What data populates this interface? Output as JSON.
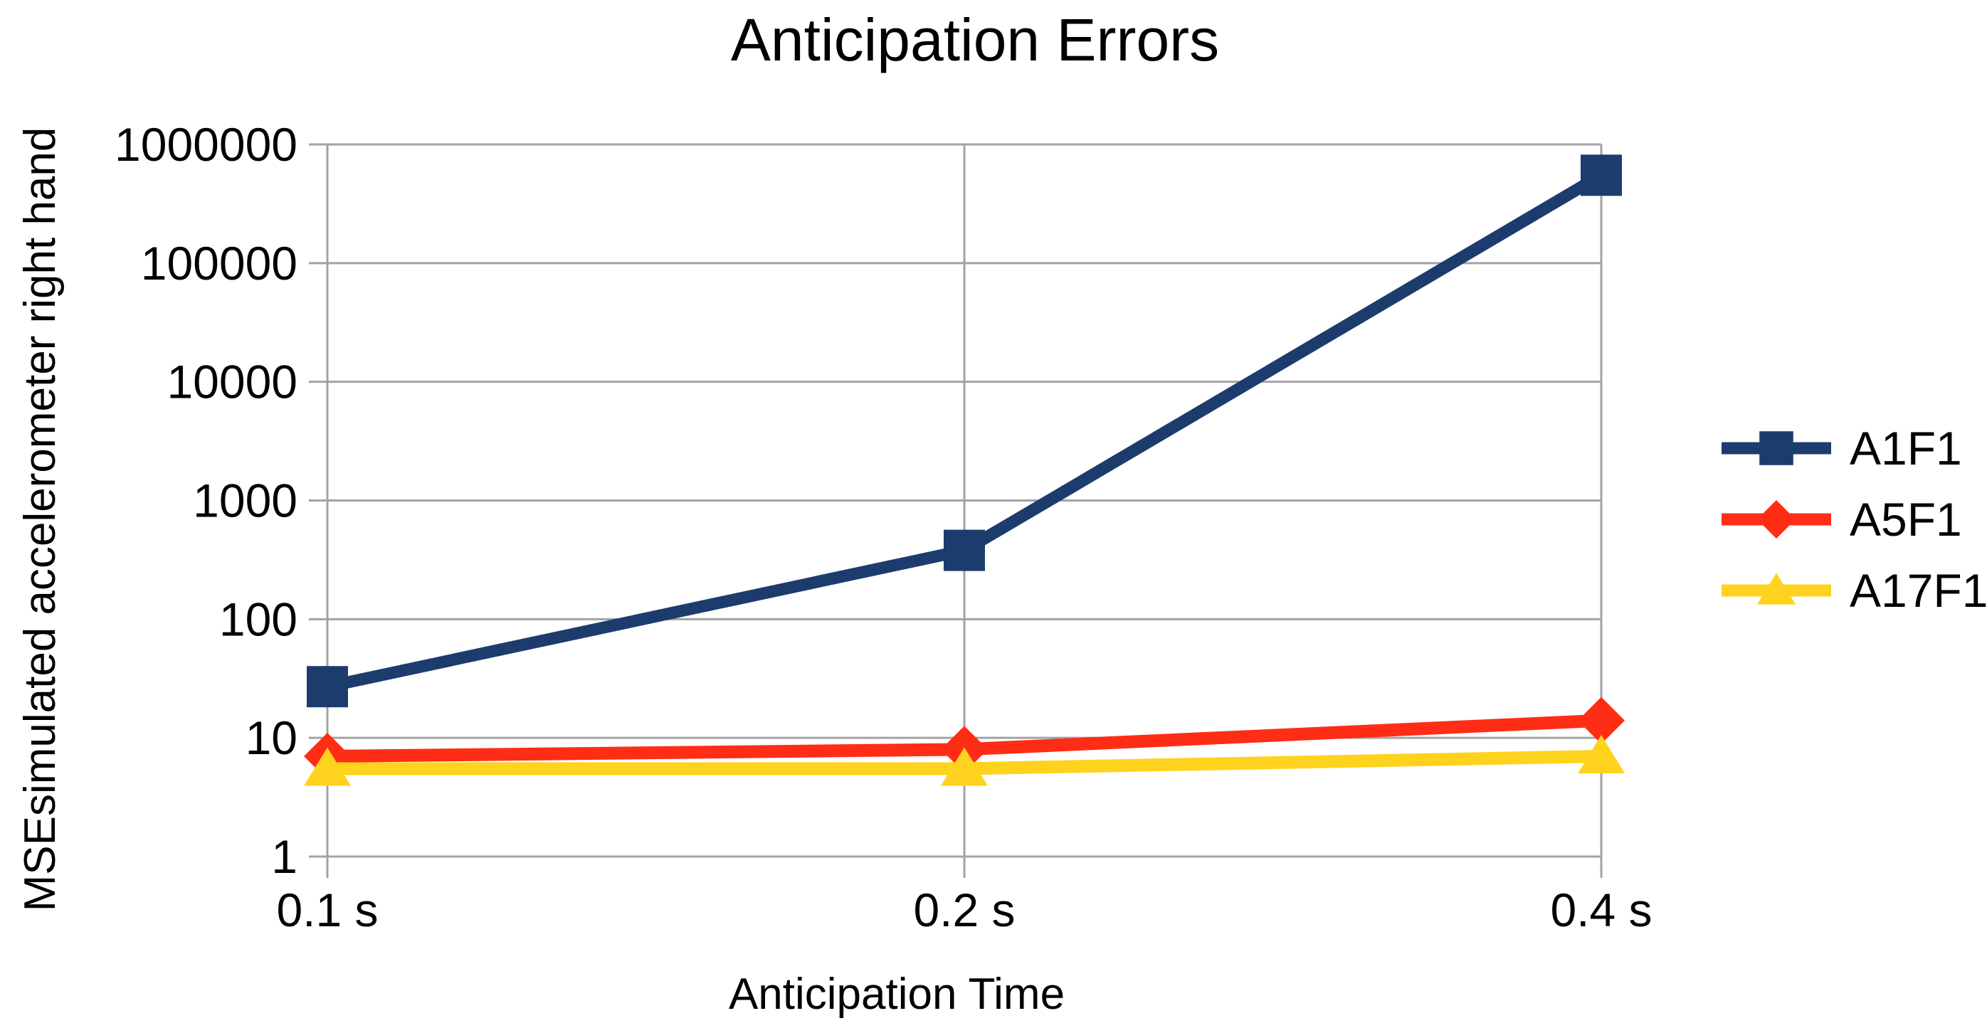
{
  "chart_data": {
    "type": "line",
    "title": "Anticipation Errors",
    "xlabel": "Anticipation Time",
    "ylabel": "MSEsimulated accelerometer right hand",
    "categories": [
      "0.1 s",
      "0.2 s",
      "0.4 s"
    ],
    "y_scale": "log10",
    "ylim": [
      1,
      1000000
    ],
    "y_ticks": [
      "1",
      "10",
      "100",
      "1000",
      "10000",
      "100000",
      "1000000"
    ],
    "grid": true,
    "legend_position": "right",
    "colors": {
      "grid": "#A3A3A3",
      "text": "#000000",
      "background": "#FFFFFF"
    },
    "series": [
      {
        "name": "A1F1",
        "color": "#1D3C6E",
        "marker": "square",
        "values": [
          27,
          380,
          550000
        ]
      },
      {
        "name": "A5F1",
        "color": "#FF2D16",
        "marker": "diamond",
        "values": [
          7,
          8,
          14
        ]
      },
      {
        "name": "A17F1",
        "color": "#FFD21E",
        "marker": "triangle",
        "values": [
          5.5,
          5.5,
          7
        ]
      }
    ]
  }
}
